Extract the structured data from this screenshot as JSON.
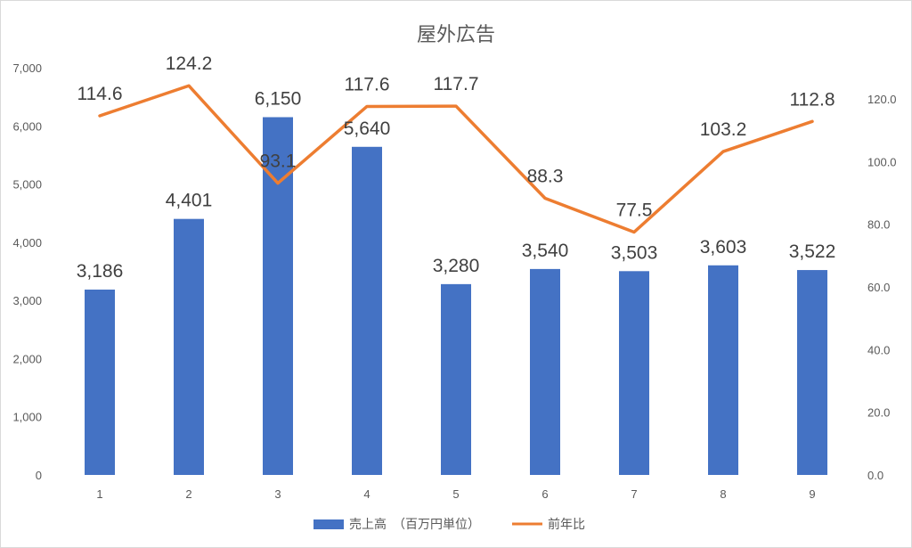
{
  "chart_data": {
    "type": "bar+line",
    "title": "屋外広告",
    "categories": [
      "1",
      "2",
      "3",
      "4",
      "5",
      "6",
      "7",
      "8",
      "9"
    ],
    "series": [
      {
        "name": "売上高　（百万円単位）",
        "type": "bar",
        "axis": "left",
        "color": "#4472C4",
        "values": [
          3186,
          4401,
          6150,
          5640,
          3280,
          3540,
          3503,
          3603,
          3522
        ],
        "labels": [
          "3,186",
          "4,401",
          "6,150",
          "5,640",
          "3,280",
          "3,540",
          "3,503",
          "3,603",
          "3,522"
        ]
      },
      {
        "name": "前年比",
        "type": "line",
        "axis": "right",
        "color": "#ED7D31",
        "values": [
          114.6,
          124.2,
          93.1,
          117.6,
          117.7,
          88.3,
          77.5,
          103.2,
          112.8
        ],
        "labels": [
          "114.6",
          "124.2",
          "93.1",
          "117.6",
          "117.7",
          "88.3",
          "77.5",
          "103.2",
          "112.8"
        ]
      }
    ],
    "y_left": {
      "range": [
        0,
        7000
      ],
      "ticks": [
        0,
        1000,
        2000,
        3000,
        4000,
        5000,
        6000,
        7000
      ],
      "tick_labels": [
        "0",
        "1,000",
        "2,000",
        "3,000",
        "4,000",
        "5,000",
        "6,000",
        "7,000"
      ]
    },
    "y_right": {
      "range": [
        0,
        130
      ],
      "ticks": [
        0,
        20,
        40,
        60,
        80,
        100,
        120
      ],
      "tick_labels": [
        "0.0",
        "20.0",
        "40.0",
        "60.0",
        "80.0",
        "100.0",
        "120.0"
      ]
    },
    "grid": false,
    "legend": "bottom"
  }
}
